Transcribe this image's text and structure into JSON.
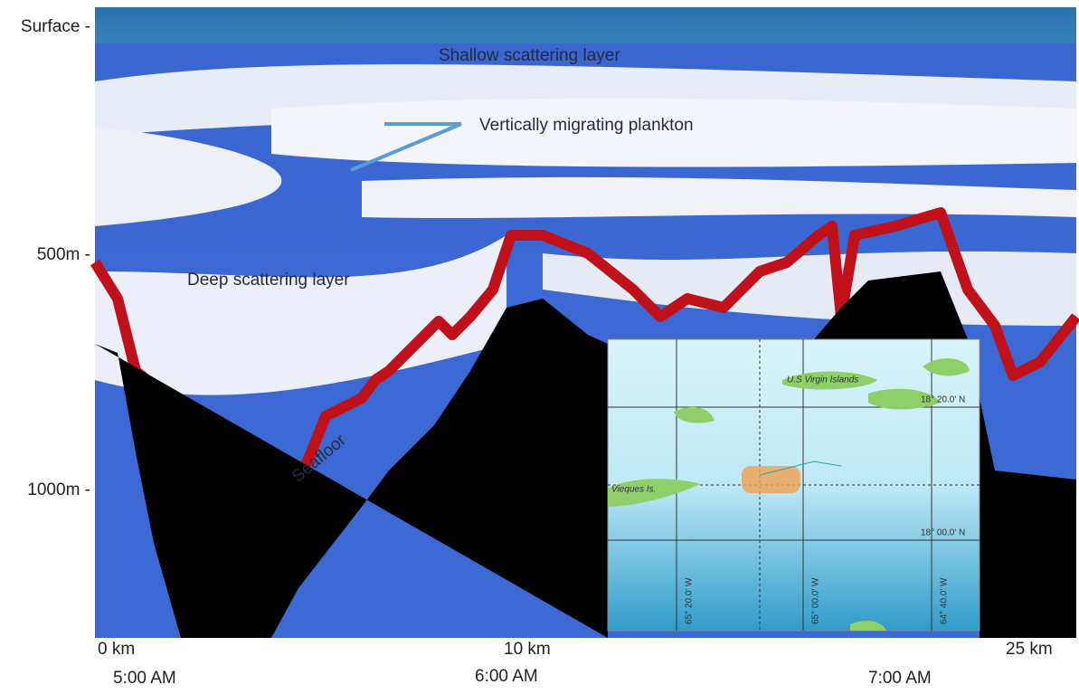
{
  "depth_axis": {
    "labels": [
      "Surface -",
      "500m -",
      "1000m -"
    ]
  },
  "distance_axis": {
    "labels": [
      "0 km",
      "10 km",
      "25 km"
    ]
  },
  "time_axis": {
    "labels": [
      "5:00 AM",
      "6:00 AM",
      "7:00 AM"
    ]
  },
  "annotations": [
    "Shallow scattering layer",
    "Vertically migrating plankton",
    "Deep scattering layer",
    "Seafloor"
  ],
  "map": {
    "labels": [
      "U.S Virgin Islands",
      "Vieques Is."
    ],
    "lat_labels": [
      "18° 20.0' N",
      "18° 00.0' N"
    ],
    "lon_labels": [
      "65° 20.0' W",
      "65° 00.0' W",
      "64° 40.0' W"
    ]
  }
}
